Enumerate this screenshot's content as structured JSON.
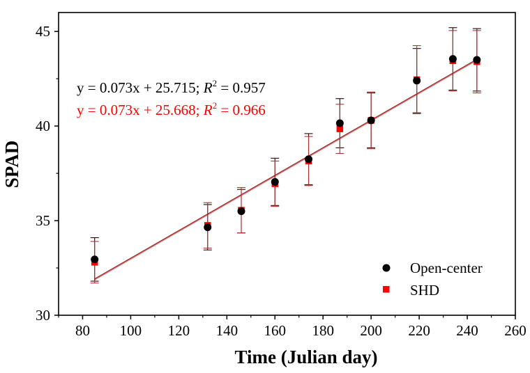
{
  "chart_data": {
    "type": "scatter",
    "xlabel": "Time (Julian day)",
    "ylabel": "SPAD",
    "xlim": [
      70,
      260
    ],
    "ylim": [
      30,
      46
    ],
    "x_ticks": [
      80,
      100,
      120,
      140,
      160,
      180,
      200,
      220,
      240,
      260
    ],
    "y_ticks": [
      30,
      35,
      40,
      45
    ],
    "grid": false,
    "legend_position": "bottom-right",
    "series": [
      {
        "name": "Open-center",
        "marker": "circle",
        "color": "#000000",
        "x": [
          85,
          132,
          146,
          160,
          174,
          187,
          200,
          219,
          234,
          244
        ],
        "y": [
          32.95,
          34.65,
          35.5,
          37.05,
          38.25,
          40.15,
          40.3,
          42.4,
          43.55,
          43.5
        ],
        "error": [
          1.15,
          1.2,
          1.15,
          1.25,
          1.35,
          1.3,
          1.45,
          1.7,
          1.65,
          1.65
        ],
        "fit": {
          "slope": 0.073,
          "intercept": 25.715,
          "x_range": [
            85,
            244
          ]
        },
        "equation": {
          "prefix": "y = 0.073x + 25.715; ",
          "r_letter": "R",
          "r_power": "2",
          "suffix": " = 0.957"
        }
      },
      {
        "name": "SHD",
        "marker": "square",
        "color": "#ff0000",
        "x": [
          85,
          132,
          146,
          160,
          174,
          187,
          200,
          219,
          234,
          244
        ],
        "y": [
          32.8,
          34.75,
          35.55,
          36.95,
          38.15,
          39.85,
          40.3,
          42.45,
          43.45,
          43.4
        ],
        "error": [
          1.1,
          1.2,
          1.2,
          1.2,
          1.3,
          1.3,
          1.5,
          1.8,
          1.6,
          1.65
        ],
        "fit": {
          "slope": 0.073,
          "intercept": 25.668,
          "x_range": [
            85,
            244
          ]
        },
        "equation": {
          "prefix": "y = 0.073x + 25.668; ",
          "r_letter": "R",
          "r_power": "2",
          "suffix": " = 0.966"
        }
      }
    ]
  }
}
